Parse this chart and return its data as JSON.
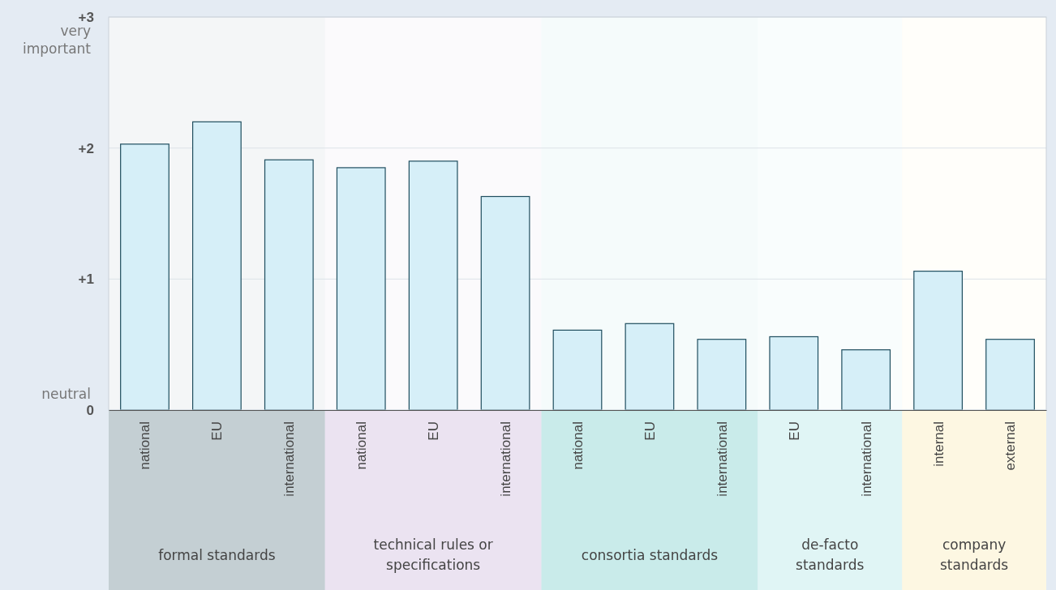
{
  "chart_data": {
    "type": "bar",
    "categories": [
      "national",
      "EU",
      "international",
      "national",
      "EU",
      "international",
      "national",
      "EU",
      "international",
      "EU",
      "international",
      "internal",
      "external"
    ],
    "values": [
      2.03,
      2.2,
      1.91,
      1.85,
      1.9,
      1.63,
      0.61,
      0.66,
      0.54,
      0.56,
      0.46,
      1.06,
      0.54
    ],
    "color": "#d6eff8",
    "ylim": [
      0,
      3
    ],
    "yticks": [
      {
        "value": 0,
        "label": "0"
      },
      {
        "value": 1,
        "label": "+1"
      },
      {
        "value": 2,
        "label": "+2"
      },
      {
        "value": 3,
        "label": "+3"
      }
    ],
    "grid": "y",
    "annotations": [
      "very important",
      "neutral",
      "formal standards",
      "technical rules or specifications",
      "consortia standards",
      "de-facto standards",
      "company standards"
    ]
  }
}
